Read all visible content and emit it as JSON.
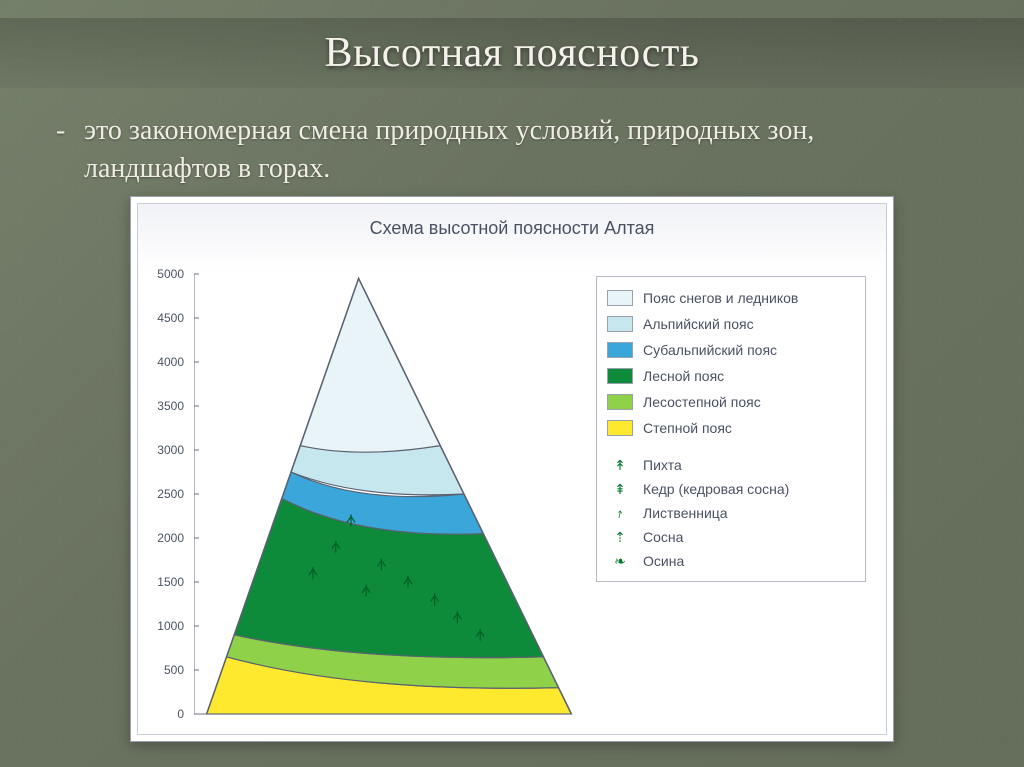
{
  "slide": {
    "title": "Высотная поясность",
    "body_prefix": "-",
    "body_text": "это закономерная смена природных условий, природных зон, ландшафтов в горах.",
    "background_from": "#75806a",
    "background_to": "#656d5b",
    "title_color": "#f5f2ec",
    "title_fontsize": 42,
    "body_color": "#efece4",
    "body_fontsize": 28
  },
  "chart": {
    "type": "stacked-area-mountain",
    "title": "Схема высотной поясности Алтая",
    "title_fontsize": 18,
    "card_bg": "#ffffff",
    "card_border": "#9aa0b0",
    "inner_header_bg": "#f1f2f6",
    "axis_color": "#6b7280",
    "label_color": "#4a5262",
    "label_fontsize": 12,
    "ylim": [
      0,
      5000
    ],
    "ytick_step": 500,
    "yticks": [
      0,
      500,
      1000,
      1500,
      2000,
      2500,
      3000,
      3500,
      4000,
      4500,
      5000
    ],
    "x_range": [
      0,
      100
    ],
    "peak_x": 42,
    "peak_y": 4950,
    "left_base_x": 2,
    "right_base_x": 98,
    "zones": [
      {
        "key": "snow",
        "label": "Пояс снегов и ледников",
        "color": "#e8f4f7",
        "left_h": 4950,
        "right_h": 4950
      },
      {
        "key": "alpine",
        "label": "Альпийский пояс",
        "color": "#c7e7ee",
        "left_h": 3050,
        "right_h": 3050
      },
      {
        "key": "subalpine",
        "label": "Субальпийский пояс",
        "color": "#3aa6d9",
        "left_h": 2750,
        "right_h": 2500
      },
      {
        "key": "forest",
        "label": "Лесной пояс",
        "color": "#0d8a3a",
        "left_h": 2450,
        "right_h": 2050
      },
      {
        "key": "fsteppe",
        "label": "Лесостепной пояс",
        "color": "#8fd24a",
        "left_h": 900,
        "right_h": 650
      },
      {
        "key": "steppe",
        "label": "Степной пояс",
        "color": "#ffe92e",
        "left_h": 650,
        "right_h": 300
      }
    ],
    "zone_border_color": "#5a6170",
    "zone_border_width": 1.2,
    "trees": [
      {
        "label": "Пихта",
        "glyph": "↟"
      },
      {
        "label": "Кедр (кедровая сосна)",
        "glyph": "⇞"
      },
      {
        "label": "Лиственница",
        "glyph": "⭎"
      },
      {
        "label": "Сосна",
        "glyph": "⇡"
      },
      {
        "label": "Осина",
        "glyph": "❧"
      }
    ],
    "forest_markers": [
      {
        "x": 30,
        "y": 1600
      },
      {
        "x": 36,
        "y": 1900
      },
      {
        "x": 40,
        "y": 2200
      },
      {
        "x": 48,
        "y": 1700
      },
      {
        "x": 55,
        "y": 1500
      },
      {
        "x": 62,
        "y": 1300
      },
      {
        "x": 68,
        "y": 1100
      },
      {
        "x": 74,
        "y": 900
      },
      {
        "x": 44,
        "y": 1400
      }
    ],
    "forest_marker_color": "#045e25"
  }
}
